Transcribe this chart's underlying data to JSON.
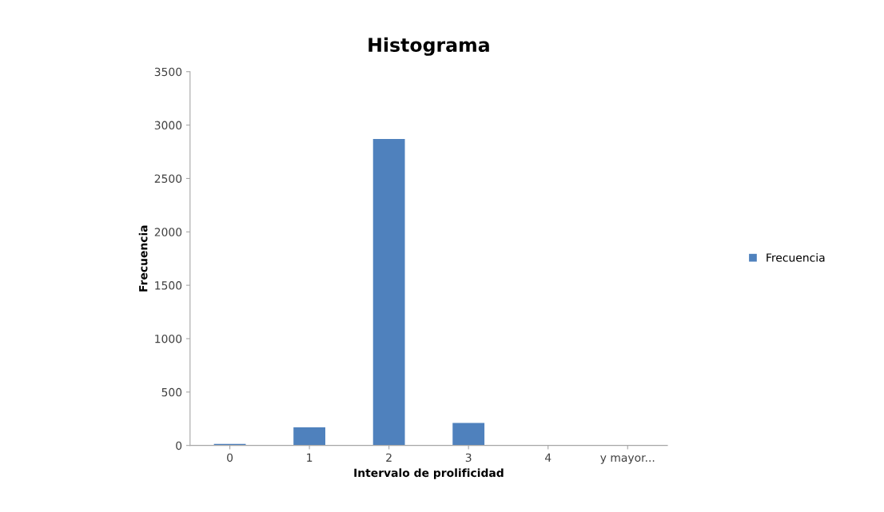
{
  "chart_data": {
    "type": "bar",
    "title": "Histograma",
    "xlabel": "Intervalo de prolificidad",
    "ylabel": "Frecuencia",
    "categories": [
      "0",
      "1",
      "2",
      "3",
      "4",
      "y mayor..."
    ],
    "series": [
      {
        "name": "Frecuencia",
        "color": "#4f81bd",
        "values": [
          15,
          170,
          2870,
          210,
          5,
          5
        ]
      }
    ],
    "ylim": [
      0,
      3500
    ],
    "yticks": [
      0,
      500,
      1000,
      1500,
      2000,
      2500,
      3000,
      3500
    ],
    "grid": false,
    "legend": "right"
  }
}
